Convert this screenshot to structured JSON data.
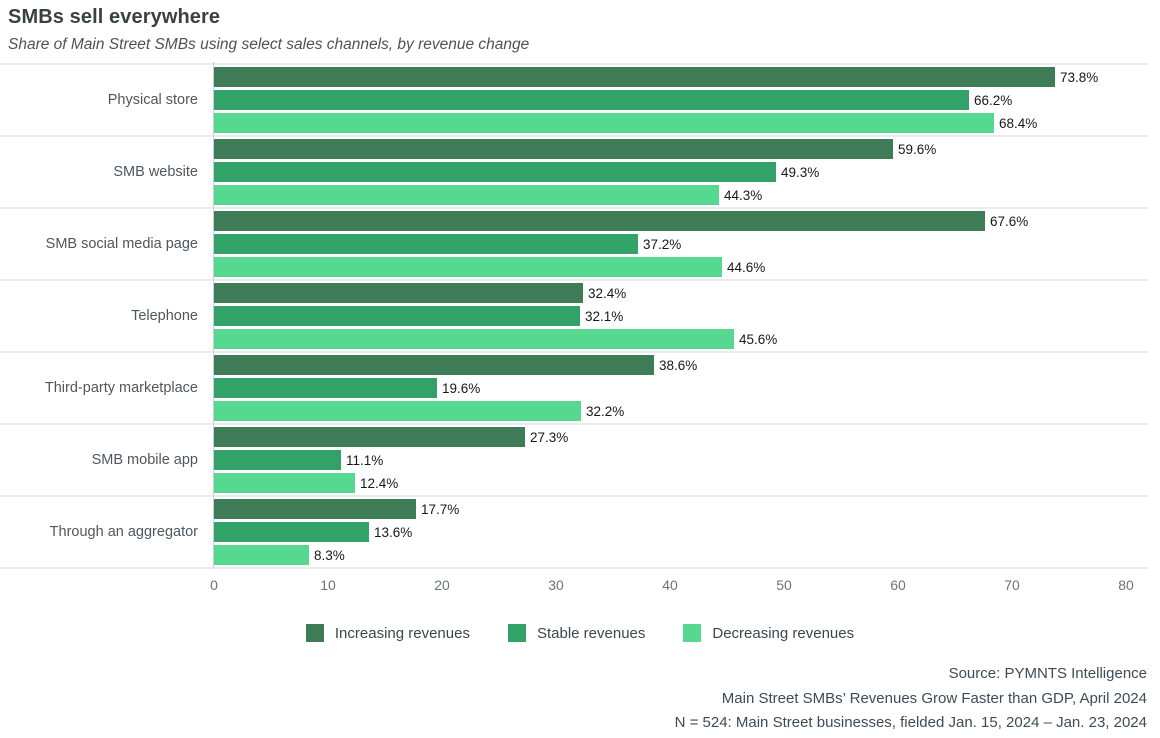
{
  "header": {
    "title": "SMBs sell everywhere",
    "subtitle": "Share of Main Street SMBs using select sales channels, by revenue change"
  },
  "chart_data": {
    "type": "bar",
    "orientation": "horizontal",
    "title": "SMBs sell everywhere",
    "subtitle": "Share of Main Street SMBs using select sales channels, by revenue change",
    "categories": [
      "Physical store",
      "SMB website",
      "SMB social media page",
      "Telephone",
      "Third-party marketplace",
      "SMB mobile app",
      "Through an aggregator"
    ],
    "series": [
      {
        "name": "Increasing revenues",
        "color": "#3e7c57",
        "values": [
          73.8,
          59.6,
          67.6,
          32.4,
          38.6,
          27.3,
          17.7
        ]
      },
      {
        "name": "Stable revenues",
        "color": "#33a268",
        "values": [
          66.2,
          49.3,
          37.2,
          32.1,
          19.6,
          11.1,
          13.6
        ]
      },
      {
        "name": "Decreasing revenues",
        "color": "#57d890",
        "values": [
          68.4,
          44.3,
          44.6,
          45.6,
          32.2,
          12.4,
          8.3
        ]
      }
    ],
    "value_suffix": "%",
    "xlim": [
      0,
      80
    ],
    "x_ticks": [
      0,
      10,
      20,
      30,
      40,
      50,
      60,
      70,
      80
    ],
    "grid": "row-separators",
    "legend_position": "bottom-center"
  },
  "footer": {
    "lines": [
      "Source: PYMNTS Intelligence",
      "Main Street SMBs’ Revenues Grow Faster than GDP, April 2024",
      "N = 524: Main Street businesses, fielded Jan. 15, 2024 – Jan. 23, 2024"
    ]
  }
}
